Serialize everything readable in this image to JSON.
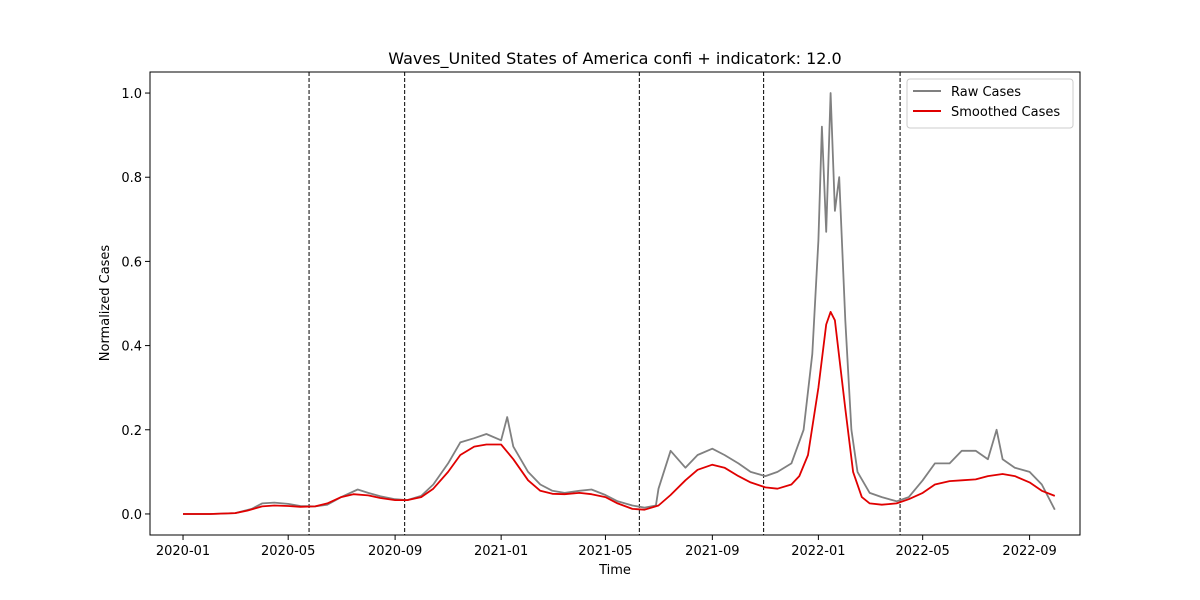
{
  "chart_data": {
    "type": "line",
    "title": "Waves_United States of America confi + indicatork: 12.0",
    "xlabel": "Time",
    "ylabel": "Normalized Cases",
    "xlim": [
      "2019-11-24",
      "2022-10-29"
    ],
    "ylim": [
      -0.05,
      1.05
    ],
    "x_ticks": [
      "2020-01",
      "2020-05",
      "2020-09",
      "2021-01",
      "2021-05",
      "2021-09",
      "2022-01",
      "2022-05",
      "2022-09"
    ],
    "y_ticks": [
      0.0,
      0.2,
      0.4,
      0.6,
      0.8,
      1.0
    ],
    "y_tick_labels": [
      "0.0",
      "0.2",
      "0.4",
      "0.6",
      "0.8",
      "1.0"
    ],
    "grid": false,
    "legend_position": "top-right",
    "colors": {
      "raw": "#808080",
      "smoothed": "#e00000",
      "wave_boundary": "#000000"
    },
    "wave_boundaries": [
      "2020-05-25",
      "2020-09-12",
      "2021-06-09",
      "2021-10-30",
      "2022-04-05"
    ],
    "series": [
      {
        "name": "Raw Cases",
        "x": [
          "2020-01-01",
          "2020-02-01",
          "2020-03-01",
          "2020-03-20",
          "2020-04-01",
          "2020-04-15",
          "2020-05-01",
          "2020-05-15",
          "2020-06-01",
          "2020-06-15",
          "2020-07-01",
          "2020-07-20",
          "2020-08-01",
          "2020-08-15",
          "2020-09-01",
          "2020-09-15",
          "2020-10-01",
          "2020-10-15",
          "2020-11-01",
          "2020-11-15",
          "2020-12-01",
          "2020-12-15",
          "2021-01-01",
          "2021-01-08",
          "2021-01-15",
          "2021-02-01",
          "2021-02-15",
          "2021-03-01",
          "2021-03-15",
          "2021-04-01",
          "2021-04-15",
          "2021-05-01",
          "2021-05-15",
          "2021-06-01",
          "2021-06-15",
          "2021-06-28",
          "2021-07-01",
          "2021-07-15",
          "2021-08-01",
          "2021-08-15",
          "2021-09-01",
          "2021-09-15",
          "2021-10-01",
          "2021-10-15",
          "2021-11-01",
          "2021-11-15",
          "2021-12-01",
          "2021-12-15",
          "2021-12-25",
          "2022-01-01",
          "2022-01-05",
          "2022-01-10",
          "2022-01-15",
          "2022-01-20",
          "2022-01-25",
          "2022-02-01",
          "2022-02-08",
          "2022-02-15",
          "2022-03-01",
          "2022-03-15",
          "2022-04-01",
          "2022-04-15",
          "2022-05-01",
          "2022-05-15",
          "2022-06-01",
          "2022-06-15",
          "2022-07-01",
          "2022-07-15",
          "2022-07-25",
          "2022-08-01",
          "2022-08-15",
          "2022-09-01",
          "2022-09-15",
          "2022-09-30"
        ],
        "values": [
          0.0,
          0.0,
          0.002,
          0.012,
          0.025,
          0.027,
          0.024,
          0.019,
          0.018,
          0.022,
          0.04,
          0.058,
          0.05,
          0.042,
          0.035,
          0.033,
          0.043,
          0.07,
          0.12,
          0.17,
          0.18,
          0.19,
          0.175,
          0.23,
          0.16,
          0.1,
          0.07,
          0.055,
          0.05,
          0.055,
          0.058,
          0.045,
          0.03,
          0.02,
          0.015,
          0.02,
          0.06,
          0.15,
          0.11,
          0.14,
          0.155,
          0.14,
          0.12,
          0.1,
          0.09,
          0.1,
          0.12,
          0.2,
          0.38,
          0.65,
          0.92,
          0.67,
          1.0,
          0.72,
          0.8,
          0.46,
          0.2,
          0.1,
          0.05,
          0.04,
          0.03,
          0.04,
          0.08,
          0.12,
          0.12,
          0.15,
          0.15,
          0.13,
          0.2,
          0.13,
          0.11,
          0.1,
          0.07,
          0.01
        ]
      },
      {
        "name": "Smoothed Cases",
        "x": [
          "2020-01-01",
          "2020-02-01",
          "2020-03-01",
          "2020-03-15",
          "2020-04-01",
          "2020-04-15",
          "2020-05-01",
          "2020-05-15",
          "2020-06-01",
          "2020-06-15",
          "2020-07-01",
          "2020-07-15",
          "2020-08-01",
          "2020-08-15",
          "2020-09-01",
          "2020-09-15",
          "2020-10-01",
          "2020-10-15",
          "2020-11-01",
          "2020-11-15",
          "2020-12-01",
          "2020-12-15",
          "2021-01-01",
          "2021-01-15",
          "2021-02-01",
          "2021-02-15",
          "2021-03-01",
          "2021-03-15",
          "2021-04-01",
          "2021-04-15",
          "2021-05-01",
          "2021-05-15",
          "2021-06-01",
          "2021-06-15",
          "2021-07-01",
          "2021-07-15",
          "2021-08-01",
          "2021-08-15",
          "2021-09-01",
          "2021-09-15",
          "2021-10-01",
          "2021-10-15",
          "2021-11-01",
          "2021-11-15",
          "2021-12-01",
          "2021-12-10",
          "2021-12-20",
          "2022-01-01",
          "2022-01-10",
          "2022-01-15",
          "2022-01-20",
          "2022-02-01",
          "2022-02-10",
          "2022-02-20",
          "2022-03-01",
          "2022-03-15",
          "2022-04-01",
          "2022-04-15",
          "2022-05-01",
          "2022-05-15",
          "2022-06-01",
          "2022-06-15",
          "2022-07-01",
          "2022-07-15",
          "2022-08-01",
          "2022-08-15",
          "2022-09-01",
          "2022-09-15",
          "2022-09-30"
        ],
        "values": [
          0.0,
          0.0,
          0.002,
          0.008,
          0.018,
          0.02,
          0.019,
          0.017,
          0.018,
          0.025,
          0.04,
          0.047,
          0.044,
          0.038,
          0.033,
          0.033,
          0.04,
          0.06,
          0.1,
          0.14,
          0.16,
          0.165,
          0.165,
          0.13,
          0.08,
          0.055,
          0.048,
          0.047,
          0.05,
          0.047,
          0.04,
          0.025,
          0.012,
          0.01,
          0.02,
          0.045,
          0.08,
          0.105,
          0.117,
          0.11,
          0.09,
          0.075,
          0.063,
          0.06,
          0.07,
          0.09,
          0.14,
          0.3,
          0.45,
          0.48,
          0.46,
          0.25,
          0.1,
          0.04,
          0.025,
          0.022,
          0.025,
          0.035,
          0.05,
          0.07,
          0.078,
          0.08,
          0.082,
          0.09,
          0.095,
          0.09,
          0.075,
          0.055,
          0.043
        ]
      }
    ]
  }
}
